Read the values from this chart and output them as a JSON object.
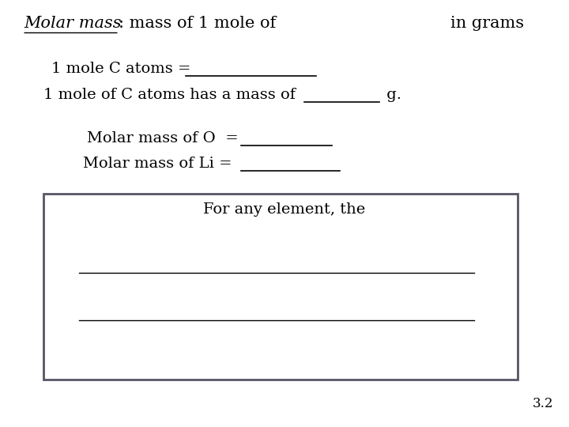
{
  "background_color": "#ffffff",
  "title_italic_underline": "Molar mass",
  "title_rest": ": mass of 1 mole of",
  "title_right": "in grams",
  "line1_text": "1 mole C atoms = ",
  "line2_text": "1 mole of C atoms has a mass of",
  "line2_suffix": " g.",
  "line3_text": "Molar mass of O  = ",
  "line4_text": "Molar mass of Li = ",
  "box_text": "For any element, the",
  "page_number": "3.2",
  "font_size_title": 15,
  "font_size_body": 14,
  "font_size_small": 12,
  "text_color": "#000000",
  "line_color": "#000000",
  "box_edge_color": "#555566"
}
